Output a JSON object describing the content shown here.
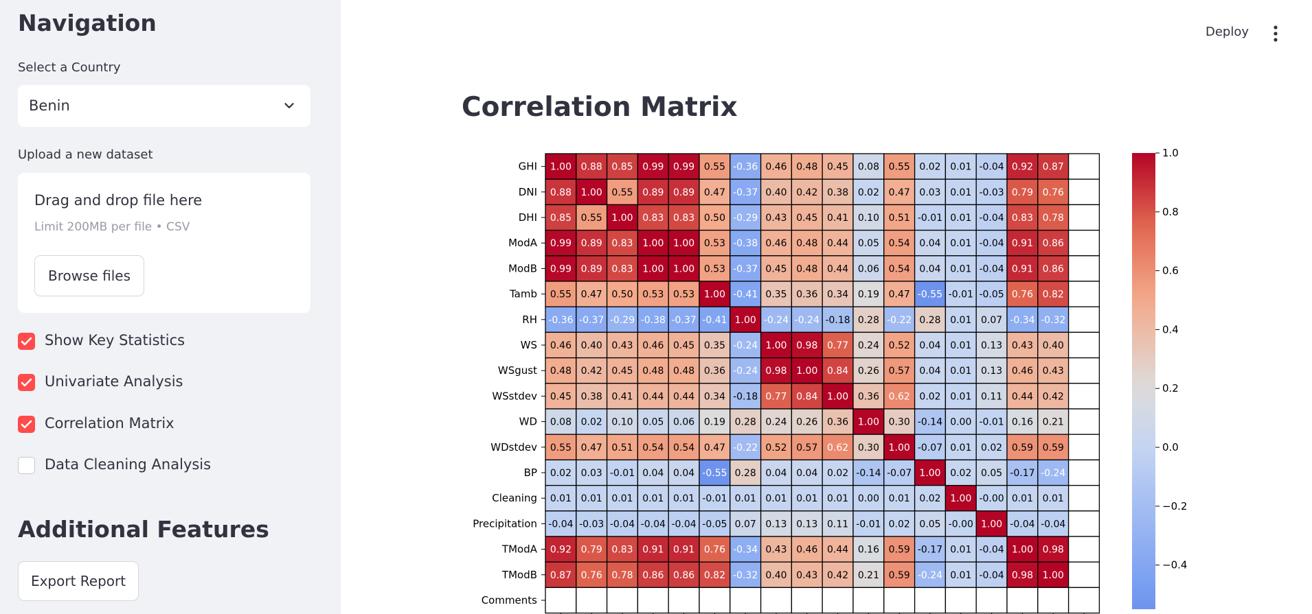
{
  "sidebar": {
    "title": "Navigation",
    "country_label": "Select a Country",
    "country_value": "Benin",
    "upload_label": "Upload a new dataset",
    "upload_drag": "Drag and drop file here",
    "upload_limit": "Limit 200MB per file • CSV",
    "browse_label": "Browse files",
    "checkboxes": [
      {
        "label": "Show Key Statistics",
        "checked": true
      },
      {
        "label": "Univariate Analysis",
        "checked": true
      },
      {
        "label": "Correlation Matrix",
        "checked": true
      },
      {
        "label": "Data Cleaning Analysis",
        "checked": false
      }
    ],
    "additional_title": "Additional Features",
    "export_label": "Export Report"
  },
  "header": {
    "deploy_label": "Deploy",
    "menu_icon": "kebab-menu-icon"
  },
  "main": {
    "title": "Correlation Matrix"
  },
  "chart_data": {
    "type": "heatmap",
    "title": "",
    "row_labels": [
      "GHI",
      "DNI",
      "DHI",
      "ModA",
      "ModB",
      "Tamb",
      "RH",
      "WS",
      "WSgust",
      "WSstdev",
      "WD",
      "WDstdev",
      "BP",
      "Cleaning",
      "Precipitation",
      "TModA",
      "TModB",
      "Comments"
    ],
    "values": [
      [
        "1.00",
        "0.88",
        "0.85",
        "0.99",
        "0.99",
        "0.55",
        "-0.36",
        "0.46",
        "0.48",
        "0.45",
        "0.08",
        "0.55",
        "0.02",
        "0.01",
        "-0.04",
        "0.92",
        "0.87",
        ""
      ],
      [
        "0.88",
        "1.00",
        "0.55",
        "0.89",
        "0.89",
        "0.47",
        "-0.37",
        "0.40",
        "0.42",
        "0.38",
        "0.02",
        "0.47",
        "0.03",
        "0.01",
        "-0.03",
        "0.79",
        "0.76",
        ""
      ],
      [
        "0.85",
        "0.55",
        "1.00",
        "0.83",
        "0.83",
        "0.50",
        "-0.29",
        "0.43",
        "0.45",
        "0.41",
        "0.10",
        "0.51",
        "-0.01",
        "0.01",
        "-0.04",
        "0.83",
        "0.78",
        ""
      ],
      [
        "0.99",
        "0.89",
        "0.83",
        "1.00",
        "1.00",
        "0.53",
        "-0.38",
        "0.46",
        "0.48",
        "0.44",
        "0.05",
        "0.54",
        "0.04",
        "0.01",
        "-0.04",
        "0.91",
        "0.86",
        ""
      ],
      [
        "0.99",
        "0.89",
        "0.83",
        "1.00",
        "1.00",
        "0.53",
        "-0.37",
        "0.45",
        "0.48",
        "0.44",
        "0.06",
        "0.54",
        "0.04",
        "0.01",
        "-0.04",
        "0.91",
        "0.86",
        ""
      ],
      [
        "0.55",
        "0.47",
        "0.50",
        "0.53",
        "0.53",
        "1.00",
        "-0.41",
        "0.35",
        "0.36",
        "0.34",
        "0.19",
        "0.47",
        "-0.55",
        "-0.01",
        "-0.05",
        "0.76",
        "0.82",
        ""
      ],
      [
        "-0.36",
        "-0.37",
        "-0.29",
        "-0.38",
        "-0.37",
        "-0.41",
        "1.00",
        "-0.24",
        "-0.24",
        "-0.18",
        "0.28",
        "-0.22",
        "0.28",
        "0.01",
        "0.07",
        "-0.34",
        "-0.32",
        ""
      ],
      [
        "0.46",
        "0.40",
        "0.43",
        "0.46",
        "0.45",
        "0.35",
        "-0.24",
        "1.00",
        "0.98",
        "0.77",
        "0.24",
        "0.52",
        "0.04",
        "0.01",
        "0.13",
        "0.43",
        "0.40",
        ""
      ],
      [
        "0.48",
        "0.42",
        "0.45",
        "0.48",
        "0.48",
        "0.36",
        "-0.24",
        "0.98",
        "1.00",
        "0.84",
        "0.26",
        "0.57",
        "0.04",
        "0.01",
        "0.13",
        "0.46",
        "0.43",
        ""
      ],
      [
        "0.45",
        "0.38",
        "0.41",
        "0.44",
        "0.44",
        "0.34",
        "-0.18",
        "0.77",
        "0.84",
        "1.00",
        "0.36",
        "0.62",
        "0.02",
        "0.01",
        "0.11",
        "0.44",
        "0.42",
        ""
      ],
      [
        "0.08",
        "0.02",
        "0.10",
        "0.05",
        "0.06",
        "0.19",
        "0.28",
        "0.24",
        "0.26",
        "0.36",
        "1.00",
        "0.30",
        "-0.14",
        "0.00",
        "-0.01",
        "0.16",
        "0.21",
        ""
      ],
      [
        "0.55",
        "0.47",
        "0.51",
        "0.54",
        "0.54",
        "0.47",
        "-0.22",
        "0.52",
        "0.57",
        "0.62",
        "0.30",
        "1.00",
        "-0.07",
        "0.01",
        "0.02",
        "0.59",
        "0.59",
        ""
      ],
      [
        "0.02",
        "0.03",
        "-0.01",
        "0.04",
        "0.04",
        "-0.55",
        "0.28",
        "0.04",
        "0.04",
        "0.02",
        "-0.14",
        "-0.07",
        "1.00",
        "0.02",
        "0.05",
        "-0.17",
        "-0.24",
        ""
      ],
      [
        "0.01",
        "0.01",
        "0.01",
        "0.01",
        "0.01",
        "-0.01",
        "0.01",
        "0.01",
        "0.01",
        "0.01",
        "0.00",
        "0.01",
        "0.02",
        "1.00",
        "-0.00",
        "0.01",
        "0.01",
        ""
      ],
      [
        "-0.04",
        "-0.03",
        "-0.04",
        "-0.04",
        "-0.04",
        "-0.05",
        "0.07",
        "0.13",
        "0.13",
        "0.11",
        "-0.01",
        "0.02",
        "0.05",
        "-0.00",
        "1.00",
        "-0.04",
        "-0.04",
        ""
      ],
      [
        "0.92",
        "0.79",
        "0.83",
        "0.91",
        "0.91",
        "0.76",
        "-0.34",
        "0.43",
        "0.46",
        "0.44",
        "0.16",
        "0.59",
        "-0.17",
        "0.01",
        "-0.04",
        "1.00",
        "0.98",
        ""
      ],
      [
        "0.87",
        "0.76",
        "0.78",
        "0.86",
        "0.86",
        "0.82",
        "-0.32",
        "0.40",
        "0.43",
        "0.42",
        "0.21",
        "0.59",
        "-0.24",
        "0.01",
        "-0.04",
        "0.98",
        "1.00",
        ""
      ],
      [
        "",
        "",
        "",
        "",
        "",
        "",
        "",
        "",
        "",
        "",
        "",
        "",
        "",
        "",
        "",
        "",
        "",
        ""
      ]
    ],
    "colorbar_ticks": [
      "1.0",
      "0.8",
      "0.6",
      "0.4",
      "0.2",
      "0.0",
      "−0.2",
      "−0.4"
    ],
    "colorbar_range": [
      -0.55,
      1.0
    ],
    "colormap": "coolwarm"
  }
}
